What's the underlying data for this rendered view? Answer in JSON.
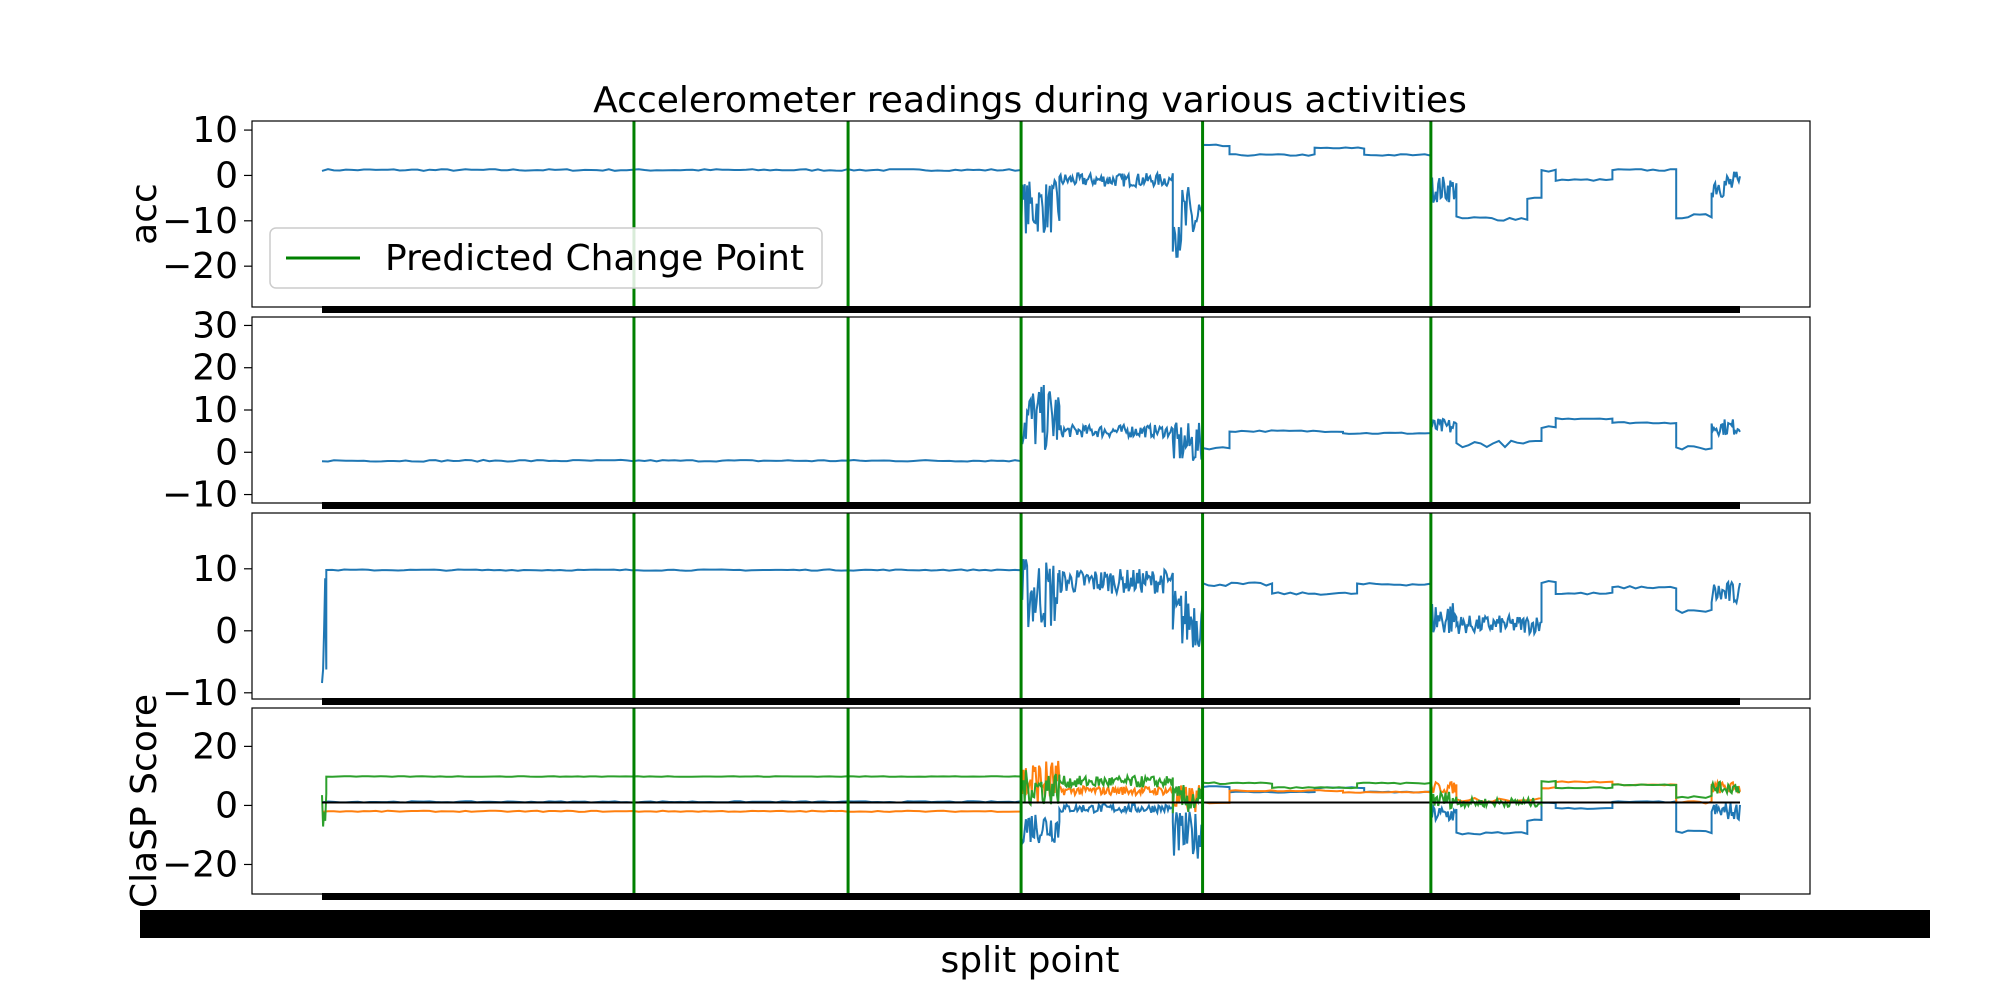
{
  "chart_data": {
    "type": "line",
    "title": "Accelerometer readings during various activities",
    "xlabel": "split point",
    "xlim": [
      0,
      1
    ],
    "colors": {
      "series": [
        "#1f77b4",
        "#ff7f0e",
        "#2ca02c"
      ],
      "change_point": "#008000",
      "score": "#000000"
    },
    "change_points": [
      0.22,
      0.371,
      0.493,
      0.621,
      0.782
    ],
    "legend": {
      "entries": [
        "Predicted Change Point"
      ],
      "position": "upper-left"
    },
    "panels": [
      {
        "ylabel": "acc",
        "ylim": [
          -29,
          12
        ],
        "yticks": [
          {
            "v": 10,
            "t": "10"
          },
          {
            "v": 0,
            "t": "0"
          },
          {
            "v": -10,
            "t": "−10"
          },
          {
            "v": -20,
            "t": "−20"
          }
        ],
        "series": [
          {
            "color": "#1f77b4",
            "segments": [
              {
                "x": [
                  0,
                  0.493
                ],
                "level": 1.2,
                "noise": 0.2
              },
              {
                "x": [
                  0.493,
                  0.52
                ],
                "level": -7,
                "noise": 6
              },
              {
                "x": [
                  0.52,
                  0.6
                ],
                "level": -1,
                "noise": 1.5
              },
              {
                "x": [
                  0.6,
                  0.621
                ],
                "level": -10,
                "noise": 8
              },
              {
                "x": [
                  0.621,
                  0.64
                ],
                "level": 6.5,
                "noise": 0.3
              },
              {
                "x": [
                  0.64,
                  0.7
                ],
                "level": 4.5,
                "noise": 0.2
              },
              {
                "x": [
                  0.7,
                  0.735
                ],
                "level": 6,
                "noise": 0.2
              },
              {
                "x": [
                  0.735,
                  0.782
                ],
                "level": 4.5,
                "noise": 0.2
              },
              {
                "x": [
                  0.782,
                  0.8
                ],
                "level": -3,
                "noise": 3
              },
              {
                "x": [
                  0.8,
                  0.85
                ],
                "level": -9.5,
                "noise": 0.5
              },
              {
                "x": [
                  0.85,
                  0.86
                ],
                "level": -5,
                "noise": 0.3
              },
              {
                "x": [
                  0.86,
                  0.87
                ],
                "level": 1,
                "noise": 0.3
              },
              {
                "x": [
                  0.87,
                  0.91
                ],
                "level": -1,
                "noise": 0.2
              },
              {
                "x": [
                  0.91,
                  0.955
                ],
                "level": 1.2,
                "noise": 0.2
              },
              {
                "x": [
                  0.955,
                  0.98
                ],
                "level": -9,
                "noise": 0.5
              },
              {
                "x": [
                  0.98,
                  1.0
                ],
                "level": -2,
                "noise": 3
              }
            ]
          }
        ]
      },
      {
        "ylabel": "",
        "ylim": [
          -12,
          32
        ],
        "yticks": [
          {
            "v": 30,
            "t": "30"
          },
          {
            "v": 20,
            "t": "20"
          },
          {
            "v": 10,
            "t": "10"
          },
          {
            "v": 0,
            "t": "0"
          },
          {
            "v": -10,
            "t": "−10"
          }
        ],
        "series": [
          {
            "color": "#1f77b4",
            "segments": [
              {
                "x": [
                  0,
                  0.493
                ],
                "level": -2,
                "noise": 0.2
              },
              {
                "x": [
                  0.493,
                  0.52
                ],
                "level": 8,
                "noise": 8
              },
              {
                "x": [
                  0.52,
                  0.6
                ],
                "level": 5,
                "noise": 1.5
              },
              {
                "x": [
                  0.6,
                  0.621
                ],
                "level": 2,
                "noise": 5
              },
              {
                "x": [
                  0.621,
                  0.64
                ],
                "level": 1,
                "noise": 0.3
              },
              {
                "x": [
                  0.64,
                  0.72
                ],
                "level": 5,
                "noise": 0.2
              },
              {
                "x": [
                  0.72,
                  0.782
                ],
                "level": 4.5,
                "noise": 0.2
              },
              {
                "x": [
                  0.782,
                  0.8
                ],
                "level": 6,
                "noise": 2
              },
              {
                "x": [
                  0.8,
                  0.86
                ],
                "level": 2,
                "noise": 0.8
              },
              {
                "x": [
                  0.86,
                  0.87
                ],
                "level": 6,
                "noise": 0.3
              },
              {
                "x": [
                  0.87,
                  0.91
                ],
                "level": 8,
                "noise": 0.2
              },
              {
                "x": [
                  0.91,
                  0.955
                ],
                "level": 7,
                "noise": 0.2
              },
              {
                "x": [
                  0.955,
                  0.98
                ],
                "level": 1,
                "noise": 0.5
              },
              {
                "x": [
                  0.98,
                  1.0
                ],
                "level": 6,
                "noise": 2
              }
            ]
          }
        ]
      },
      {
        "ylabel": "",
        "ylim": [
          -11,
          19
        ],
        "yticks": [
          {
            "v": 10,
            "t": "10"
          },
          {
            "v": 0,
            "t": "0"
          },
          {
            "v": -10,
            "t": "−10"
          }
        ],
        "series": [
          {
            "color": "#1f77b4",
            "segments": [
              {
                "x": [
                  0,
                  0.003
                ],
                "level": 0,
                "noise": 9
              },
              {
                "x": [
                  0.003,
                  0.493
                ],
                "level": 9.8,
                "noise": 0.1
              },
              {
                "x": [
                  0.493,
                  0.52
                ],
                "level": 6,
                "noise": 6
              },
              {
                "x": [
                  0.52,
                  0.6
                ],
                "level": 8,
                "noise": 2
              },
              {
                "x": [
                  0.6,
                  0.621
                ],
                "level": 2,
                "noise": 5
              },
              {
                "x": [
                  0.621,
                  0.67
                ],
                "level": 7.5,
                "noise": 0.3
              },
              {
                "x": [
                  0.67,
                  0.73
                ],
                "level": 6,
                "noise": 0.2
              },
              {
                "x": [
                  0.73,
                  0.782
                ],
                "level": 7.5,
                "noise": 0.2
              },
              {
                "x": [
                  0.782,
                  0.8
                ],
                "level": 2,
                "noise": 3
              },
              {
                "x": [
                  0.8,
                  0.86
                ],
                "level": 1,
                "noise": 1.5
              },
              {
                "x": [
                  0.86,
                  0.87
                ],
                "level": 8,
                "noise": 0.3
              },
              {
                "x": [
                  0.87,
                  0.91
                ],
                "level": 6,
                "noise": 0.2
              },
              {
                "x": [
                  0.91,
                  0.955
                ],
                "level": 7,
                "noise": 0.2
              },
              {
                "x": [
                  0.955,
                  0.98
                ],
                "level": 3,
                "noise": 0.5
              },
              {
                "x": [
                  0.98,
                  1.0
                ],
                "level": 6,
                "noise": 2
              }
            ]
          }
        ]
      },
      {
        "ylabel": "ClaSP Score",
        "ylim": [
          -30,
          33
        ],
        "yticks": [
          {
            "v": 20,
            "t": "20"
          },
          {
            "v": 0,
            "t": "0"
          },
          {
            "v": -20,
            "t": "−20"
          }
        ],
        "score_level": 1,
        "series": [
          {
            "color": "#1f77b4",
            "segments": [
              {
                "x": [
                  0,
                  0.493
                ],
                "level": 1.2,
                "noise": 0.2
              },
              {
                "x": [
                  0.493,
                  0.52
                ],
                "level": -7,
                "noise": 6
              },
              {
                "x": [
                  0.52,
                  0.6
                ],
                "level": -1,
                "noise": 1.5
              },
              {
                "x": [
                  0.6,
                  0.621
                ],
                "level": -10,
                "noise": 8
              },
              {
                "x": [
                  0.621,
                  0.64
                ],
                "level": 6.5,
                "noise": 0.3
              },
              {
                "x": [
                  0.64,
                  0.7
                ],
                "level": 4.5,
                "noise": 0.2
              },
              {
                "x": [
                  0.7,
                  0.735
                ],
                "level": 6,
                "noise": 0.2
              },
              {
                "x": [
                  0.735,
                  0.782
                ],
                "level": 4.5,
                "noise": 0.2
              },
              {
                "x": [
                  0.782,
                  0.8
                ],
                "level": -3,
                "noise": 3
              },
              {
                "x": [
                  0.8,
                  0.85
                ],
                "level": -9.5,
                "noise": 0.5
              },
              {
                "x": [
                  0.85,
                  0.86
                ],
                "level": -5,
                "noise": 0.3
              },
              {
                "x": [
                  0.86,
                  0.87
                ],
                "level": 1,
                "noise": 0.3
              },
              {
                "x": [
                  0.87,
                  0.91
                ],
                "level": -1,
                "noise": 0.2
              },
              {
                "x": [
                  0.91,
                  0.955
                ],
                "level": 1.2,
                "noise": 0.2
              },
              {
                "x": [
                  0.955,
                  0.98
                ],
                "level": -9,
                "noise": 0.5
              },
              {
                "x": [
                  0.98,
                  1.0
                ],
                "level": -2,
                "noise": 3
              }
            ]
          },
          {
            "color": "#ff7f0e",
            "segments": [
              {
                "x": [
                  0,
                  0.493
                ],
                "level": -2,
                "noise": 0.2
              },
              {
                "x": [
                  0.493,
                  0.52
                ],
                "level": 8,
                "noise": 8
              },
              {
                "x": [
                  0.52,
                  0.6
                ],
                "level": 5,
                "noise": 1.5
              },
              {
                "x": [
                  0.6,
                  0.621
                ],
                "level": 2,
                "noise": 5
              },
              {
                "x": [
                  0.621,
                  0.64
                ],
                "level": 1,
                "noise": 0.3
              },
              {
                "x": [
                  0.64,
                  0.72
                ],
                "level": 5,
                "noise": 0.2
              },
              {
                "x": [
                  0.72,
                  0.782
                ],
                "level": 4.5,
                "noise": 0.2
              },
              {
                "x": [
                  0.782,
                  0.8
                ],
                "level": 6,
                "noise": 2
              },
              {
                "x": [
                  0.8,
                  0.86
                ],
                "level": 2,
                "noise": 0.8
              },
              {
                "x": [
                  0.86,
                  0.87
                ],
                "level": 6,
                "noise": 0.3
              },
              {
                "x": [
                  0.87,
                  0.91
                ],
                "level": 8,
                "noise": 0.2
              },
              {
                "x": [
                  0.91,
                  0.955
                ],
                "level": 7,
                "noise": 0.2
              },
              {
                "x": [
                  0.955,
                  0.98
                ],
                "level": 1,
                "noise": 0.5
              },
              {
                "x": [
                  0.98,
                  1.0
                ],
                "level": 6,
                "noise": 2
              }
            ]
          },
          {
            "color": "#2ca02c",
            "segments": [
              {
                "x": [
                  0,
                  0.003
                ],
                "level": 0,
                "noise": 9
              },
              {
                "x": [
                  0.003,
                  0.493
                ],
                "level": 9.8,
                "noise": 0.1
              },
              {
                "x": [
                  0.493,
                  0.52
                ],
                "level": 6,
                "noise": 6
              },
              {
                "x": [
                  0.52,
                  0.6
                ],
                "level": 8,
                "noise": 2
              },
              {
                "x": [
                  0.6,
                  0.621
                ],
                "level": 2,
                "noise": 5
              },
              {
                "x": [
                  0.621,
                  0.67
                ],
                "level": 7.5,
                "noise": 0.3
              },
              {
                "x": [
                  0.67,
                  0.73
                ],
                "level": 6,
                "noise": 0.2
              },
              {
                "x": [
                  0.73,
                  0.782
                ],
                "level": 7.5,
                "noise": 0.2
              },
              {
                "x": [
                  0.782,
                  0.8
                ],
                "level": 2,
                "noise": 3
              },
              {
                "x": [
                  0.8,
                  0.86
                ],
                "level": 1,
                "noise": 1.5
              },
              {
                "x": [
                  0.86,
                  0.87
                ],
                "level": 8,
                "noise": 0.3
              },
              {
                "x": [
                  0.87,
                  0.91
                ],
                "level": 6,
                "noise": 0.2
              },
              {
                "x": [
                  0.91,
                  0.955
                ],
                "level": 7,
                "noise": 0.2
              },
              {
                "x": [
                  0.955,
                  0.98
                ],
                "level": 3,
                "noise": 0.5
              },
              {
                "x": [
                  0.98,
                  1.0
                ],
                "level": 6,
                "noise": 2
              }
            ]
          }
        ]
      }
    ]
  }
}
